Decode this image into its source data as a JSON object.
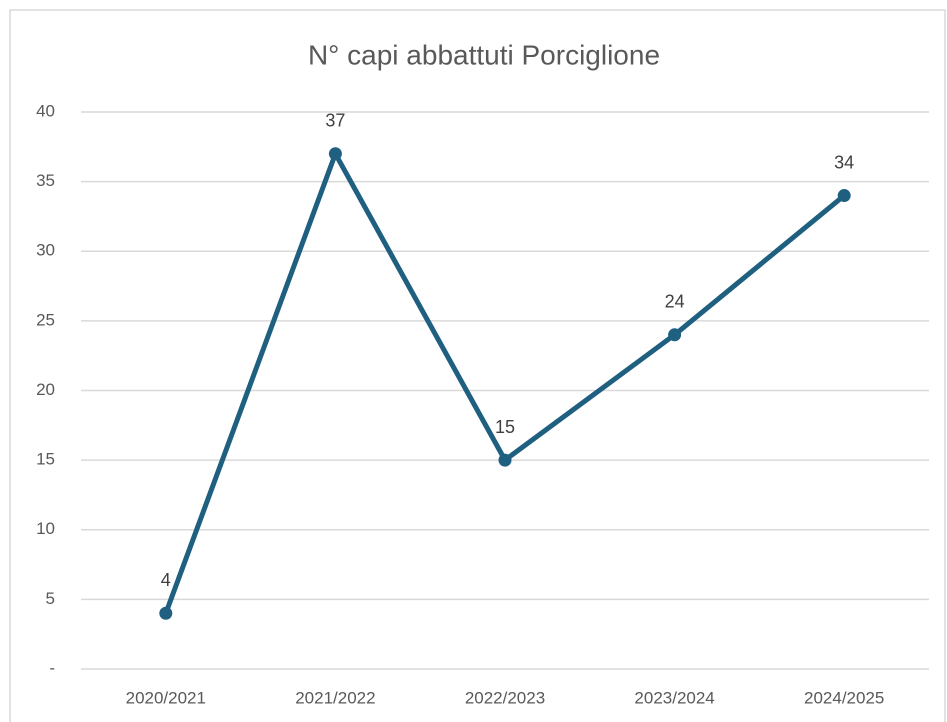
{
  "chart_data": {
    "type": "line",
    "title": "N° capi abbattuti Porciglione",
    "categories": [
      "2020/2021",
      "2021/2022",
      "2022/2023",
      "2023/2024",
      "2024/2025"
    ],
    "series": [
      {
        "name": "N° capi abbattuti Porciglione",
        "color": "#1f5f80",
        "values": [
          4,
          37,
          15,
          24,
          34
        ]
      }
    ],
    "ylim": [
      0,
      40
    ],
    "yticks": [
      {
        "value": 0,
        "label": "-"
      },
      5,
      10,
      15,
      20,
      25,
      30,
      35,
      40
    ],
    "grid": true,
    "data_labels": true
  }
}
